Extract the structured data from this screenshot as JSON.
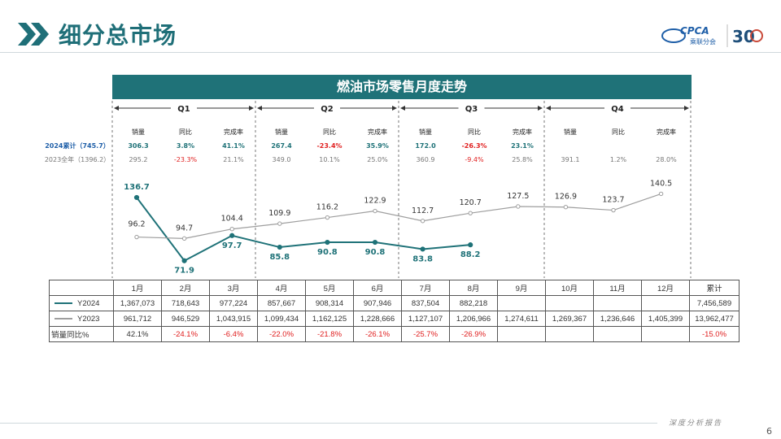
{
  "header": {
    "title": "细分总市场",
    "logo_text": "CPCA",
    "logo_sub": "乘联分会",
    "anniv": "30"
  },
  "banner": {
    "title": "燃油市场零售月度走势"
  },
  "quarters": [
    "Q1",
    "Q2",
    "Q3",
    "Q4"
  ],
  "metrics_labels": [
    "销量",
    "同比",
    "完成率"
  ],
  "summary": [
    {
      "label": "2024累计（745.7）",
      "values": [
        "306.3",
        "3.8%",
        "41.1%",
        "267.4",
        "-23.4%",
        "35.9%",
        "172.0",
        "-26.3%",
        "23.1%",
        "",
        "",
        ""
      ]
    },
    {
      "label": "2023全年（1396.2）",
      "values": [
        "295.2",
        "-23.3%",
        "21.1%",
        "349.0",
        "10.1%",
        "25.0%",
        "360.9",
        "-9.4%",
        "25.8%",
        "391.1",
        "1.2%",
        "28.0%"
      ]
    }
  ],
  "chart_data": {
    "type": "line",
    "categories": [
      "1月",
      "2月",
      "3月",
      "4月",
      "5月",
      "6月",
      "7月",
      "8月",
      "9月",
      "10月",
      "11月",
      "12月"
    ],
    "series": [
      {
        "name": "Y2024",
        "color": "#1f7278",
        "values": [
          136.7,
          71.9,
          97.7,
          85.8,
          90.8,
          90.8,
          83.8,
          88.2,
          null,
          null,
          null,
          null
        ]
      },
      {
        "name": "Y2023",
        "color": "#9e9e9e",
        "values": [
          96.2,
          94.7,
          104.4,
          109.9,
          116.2,
          122.9,
          112.7,
          120.7,
          127.5,
          126.9,
          123.7,
          140.5
        ]
      }
    ]
  },
  "table": {
    "headers": [
      "1月",
      "2月",
      "3月",
      "4月",
      "5月",
      "6月",
      "7月",
      "8月",
      "9月",
      "10月",
      "11月",
      "12月",
      "累计"
    ],
    "rows": [
      {
        "label": "Y2024",
        "color": "#1f7278",
        "cells": [
          "1,367,073",
          "718,643",
          "977,224",
          "857,667",
          "908,314",
          "907,946",
          "837,504",
          "882,218",
          "",
          "",
          "",
          "",
          "7,456,589"
        ]
      },
      {
        "label": "Y2023",
        "color": "#9e9e9e",
        "cells": [
          "961,712",
          "946,529",
          "1,043,915",
          "1,099,434",
          "1,162,125",
          "1,228,666",
          "1,127,107",
          "1,206,966",
          "1,274,611",
          "1,269,367",
          "1,236,646",
          "1,405,399",
          "13,962,477"
        ]
      },
      {
        "label": "销量同比%",
        "color": "",
        "cells": [
          "42.1%",
          "-24.1%",
          "-6.4%",
          "-22.0%",
          "-21.8%",
          "-26.1%",
          "-25.7%",
          "-26.9%",
          "",
          "",
          "",
          "",
          "-15.0%"
        ]
      }
    ]
  },
  "footer": {
    "text": "深度分析报告",
    "page": "6"
  }
}
